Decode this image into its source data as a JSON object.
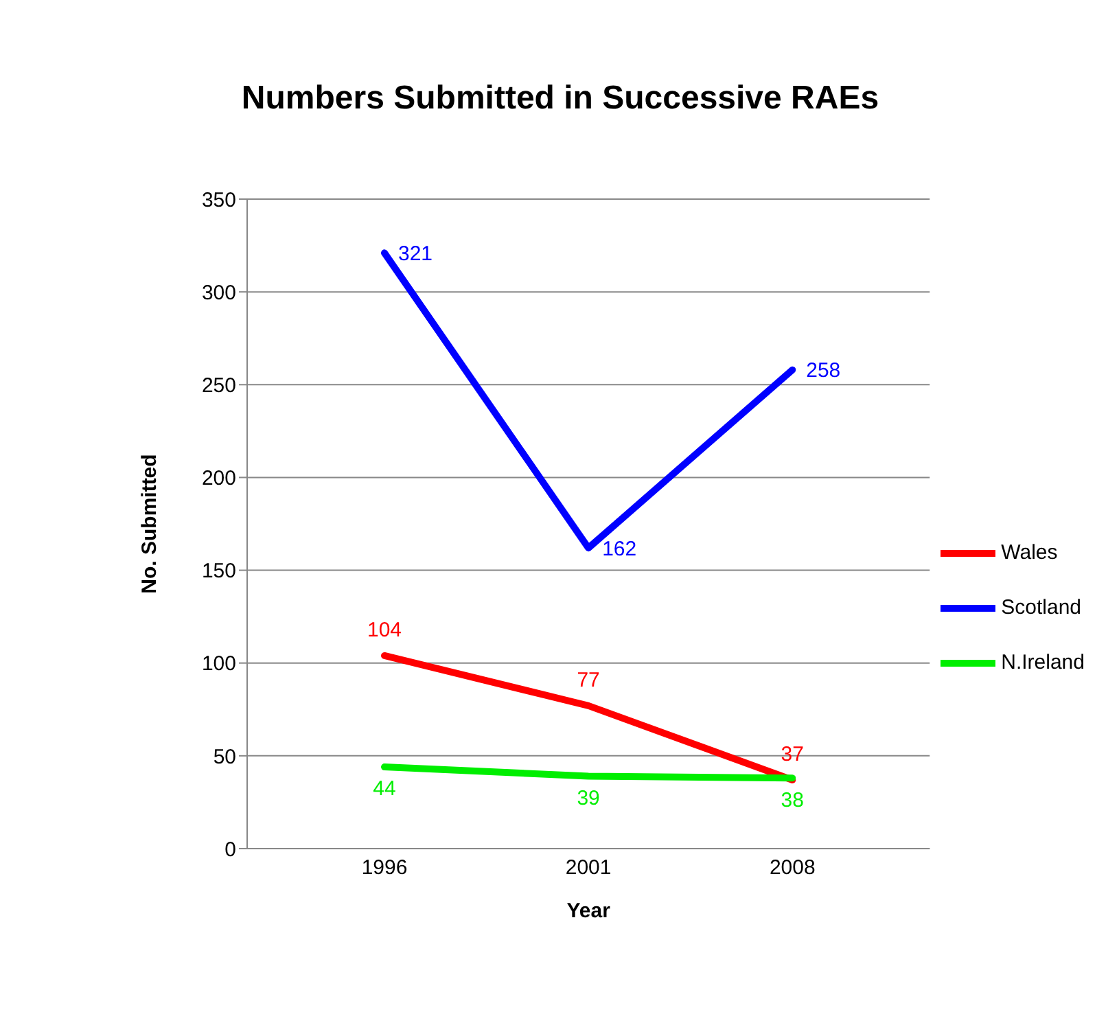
{
  "chart_data": {
    "type": "line",
    "title": "Numbers Submitted in Successive RAEs",
    "xlabel": "Year",
    "ylabel": "No. Submitted",
    "categories": [
      "1996",
      "2001",
      "2008"
    ],
    "series": [
      {
        "name": "Wales",
        "color": "#ff0000",
        "values": [
          104,
          77,
          37
        ]
      },
      {
        "name": "Scotland",
        "color": "#0000ff",
        "values": [
          321,
          162,
          258
        ]
      },
      {
        "name": "N.Ireland",
        "color": "#00ee00",
        "values": [
          44,
          39,
          38
        ]
      }
    ],
    "ylim": [
      0,
      350
    ],
    "yticks": [
      0,
      50,
      100,
      150,
      200,
      250,
      300,
      350
    ],
    "grid": "y",
    "legend": "right",
    "data_labels": true,
    "marker": "none",
    "line_style": "solid"
  }
}
